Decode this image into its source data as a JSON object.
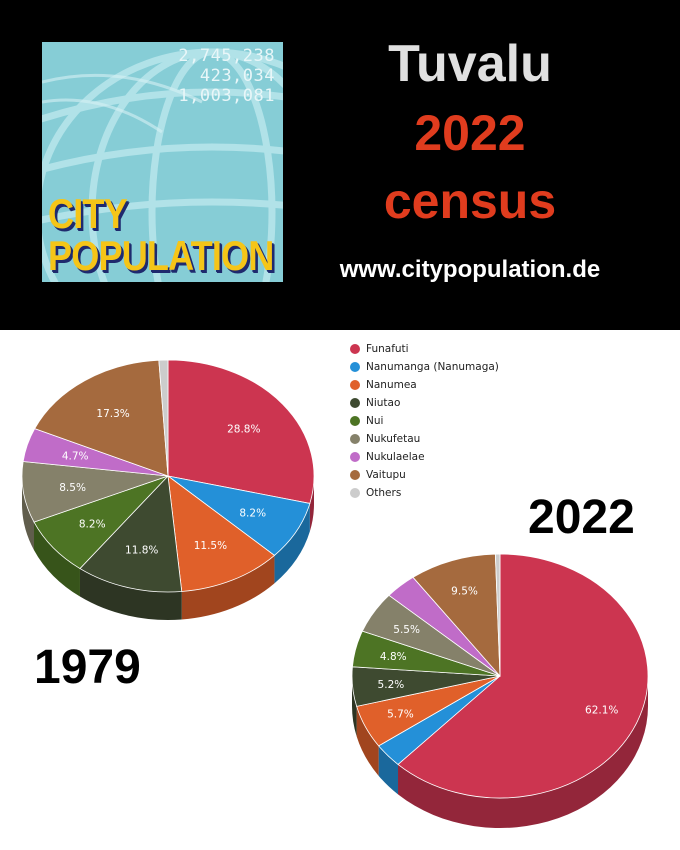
{
  "header": {
    "country": "Tuvalu",
    "year": "2022",
    "subtitle": "census",
    "website": "www.citypopulation.de",
    "title_color": "#e0e0e0",
    "accent_color": "#e03c1e"
  },
  "logo": {
    "numbers": [
      "2,745,238",
      "423,034",
      "1,003,081"
    ],
    "word1": "CITY",
    "word2": "POPULATION"
  },
  "chart_data": [
    {
      "type": "pie",
      "year_label": "1979",
      "categories": [
        "Funafuti",
        "Nanumanga (Nanumaga)",
        "Nanumea",
        "Niutao",
        "Nui",
        "Nukufetau",
        "Nukulaelae",
        "Vaitupu",
        "Others"
      ],
      "values": [
        28.8,
        8.2,
        11.5,
        11.8,
        8.2,
        8.5,
        4.7,
        17.3,
        1.0
      ],
      "labels": [
        "28.8%",
        "8.2%",
        "11.5%",
        "11.8%",
        "8.2%",
        "8.5%",
        "4.7%",
        "17.3%",
        ""
      ]
    },
    {
      "type": "pie",
      "year_label": "2022",
      "categories": [
        "Funafuti",
        "Nanumanga (Nanumaga)",
        "Nanumea",
        "Niutao",
        "Nui",
        "Nukufetau",
        "Nukulaelae",
        "Vaitupu",
        "Others"
      ],
      "values": [
        62.1,
        3.2,
        5.7,
        5.2,
        4.8,
        5.5,
        3.5,
        9.5,
        0.5
      ],
      "labels": [
        "62.1%",
        "",
        "5.7%",
        "5.2%",
        "4.8%",
        "5.5%",
        "",
        "9.5%",
        ""
      ]
    }
  ],
  "legend": [
    {
      "name": "Funafuti",
      "color": "#cc3550"
    },
    {
      "name": "Nanumanga (Nanumaga)",
      "color": "#2490d8"
    },
    {
      "name": "Nanumea",
      "color": "#e0602a"
    },
    {
      "name": "Niutao",
      "color": "#3e4a30"
    },
    {
      "name": "Nui",
      "color": "#4d7424"
    },
    {
      "name": "Nukufetau",
      "color": "#85816a"
    },
    {
      "name": "Nukulaelae",
      "color": "#c06cc8"
    },
    {
      "name": "Vaitupu",
      "color": "#a56a3e"
    },
    {
      "name": "Others",
      "color": "#cccccc"
    }
  ]
}
